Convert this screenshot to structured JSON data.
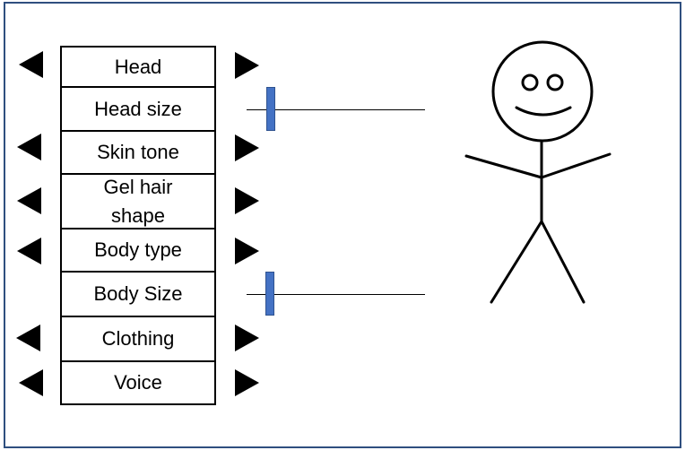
{
  "options": {
    "head": "Head",
    "head_size": "Head size",
    "skin_tone": "Skin tone",
    "gel_hair_shape": "Gel hair shape",
    "body_type": "Body type",
    "body_size": "Body Size",
    "clothing": "Clothing",
    "voice": "Voice"
  },
  "sliders": {
    "head_size_value": 0.1,
    "body_size_value": 0.1
  },
  "colors": {
    "frame_border": "#2f4f7f",
    "slider_thumb": "#4472c4"
  },
  "preview": {
    "figure": "stick-figure"
  }
}
